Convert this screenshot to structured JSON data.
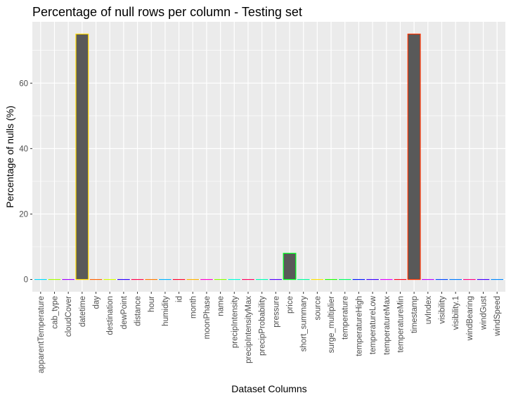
{
  "chart_data": {
    "type": "bar",
    "title": "Percentage of null rows per column - Testing set",
    "xlabel": "Dataset Columns",
    "ylabel": "Percentage of nulls (%)",
    "ylim": [
      -3.75,
      78.75
    ],
    "yticks": [
      0,
      20,
      40,
      60
    ],
    "grid": true,
    "legend": "none",
    "categories": [
      "apparentTemperature",
      "cab_type",
      "cloudCover",
      "datetime",
      "day",
      "destination",
      "dewPoint",
      "distance",
      "hour",
      "humidity",
      "id",
      "month",
      "moonPhase",
      "name",
      "precipIntensity",
      "precipIntensityMax",
      "precipProbability",
      "pressure",
      "price",
      "short_summary",
      "source",
      "surge_multiplier",
      "temperature",
      "temperatureHigh",
      "temperatureLow",
      "temperatureMax",
      "temperatureMin",
      "timestamp",
      "uvIndex",
      "visibility",
      "visibility.1",
      "windBearing",
      "windGust",
      "windSpeed"
    ],
    "values": [
      0,
      0,
      0,
      75,
      0,
      0,
      0,
      0,
      0,
      0,
      0,
      0,
      0,
      0,
      0,
      0,
      0,
      0,
      8,
      0,
      0,
      0,
      0,
      0,
      0,
      0,
      0,
      75,
      0,
      0,
      0,
      0,
      0,
      0
    ],
    "bar_fill": "#595959",
    "outline_colors": [
      "#00d9ff",
      "#a6ff00",
      "#9f00ff",
      "#ffd900",
      "#ff6200",
      "#d4ff00",
      "#2b00ff",
      "#ff004c",
      "#ff7b00",
      "#00b3ff",
      "#ff002b",
      "#ffb300",
      "#ff00d0",
      "#8cff00",
      "#00ffd9",
      "#ff005e",
      "#00ffb3",
      "#5500ff",
      "#00ff22",
      "#00ff9e",
      "#ffe100",
      "#1eff00",
      "#00ff62",
      "#0015ff",
      "#3c00ff",
      "#e000ff",
      "#ff001a",
      "#ff3300",
      "#bb00ff",
      "#0048ff",
      "#007bff",
      "#ff0080",
      "#4400ff",
      "#0088ff"
    ],
    "panel_background": "#ebebeb",
    "grid_color": "#ffffff"
  }
}
